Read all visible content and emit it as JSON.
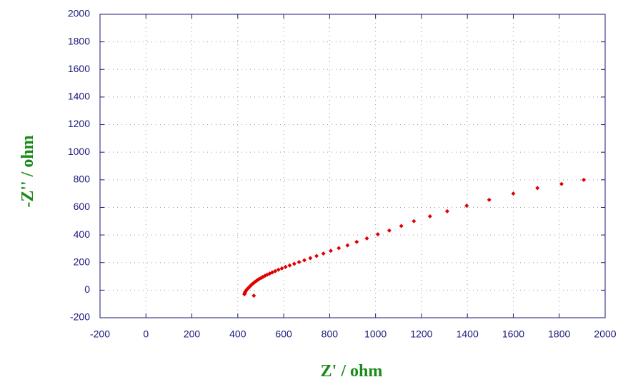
{
  "chart_data": {
    "type": "scatter",
    "x_label": "Z' / ohm",
    "y_label": "-Z'' / ohm",
    "xlim": [
      -200,
      2000
    ],
    "ylim": [
      -200,
      2000
    ],
    "xticks": [
      -200,
      0,
      200,
      400,
      600,
      800,
      1000,
      1200,
      1400,
      1600,
      1800,
      2000
    ],
    "yticks": [
      -200,
      0,
      200,
      400,
      600,
      800,
      1000,
      1200,
      1400,
      1600,
      1800,
      2000
    ],
    "grid": true,
    "color": "#e00000",
    "x": [
      1907,
      1810,
      1705,
      1600,
      1495,
      1397,
      1312,
      1237,
      1167,
      1112,
      1060,
      1010,
      962,
      918,
      878,
      840,
      805,
      773,
      743,
      716,
      690,
      667,
      646,
      626,
      608,
      592,
      577,
      563,
      550,
      539,
      528,
      518,
      509,
      501,
      493,
      486,
      480,
      474,
      469,
      464,
      459,
      455,
      451,
      447,
      443,
      439,
      436,
      433,
      431,
      430,
      429,
      470
    ],
    "values": [
      800,
      770,
      740,
      700,
      655,
      612,
      572,
      535,
      500,
      465,
      432,
      405,
      375,
      350,
      325,
      305,
      285,
      265,
      248,
      232,
      217,
      204,
      191,
      179,
      168,
      158,
      148,
      138,
      129,
      120,
      112,
      104,
      96,
      88,
      81,
      73,
      66,
      59,
      52,
      45,
      38,
      31,
      24,
      17,
      10,
      3,
      -4,
      -11,
      -18,
      -25,
      -30,
      -40
    ]
  }
}
